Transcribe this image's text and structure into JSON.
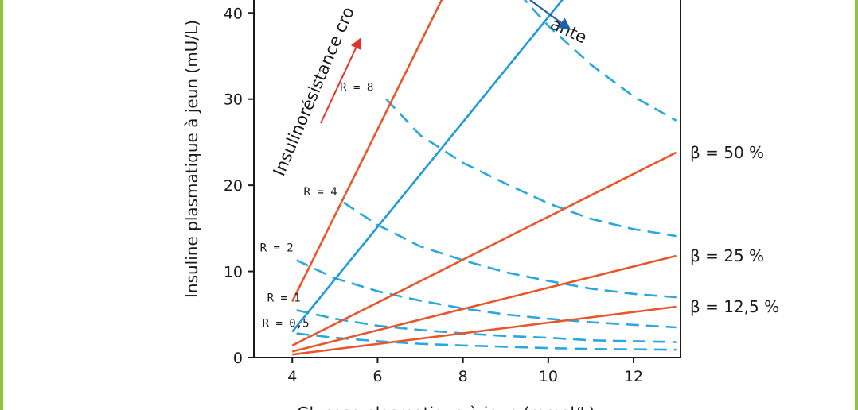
{
  "chart_data": {
    "type": "line",
    "xlabel": "Glucose plasmatique à jeun (mmol/L)",
    "ylabel": "Insuline plasmatique à jeun (mU/L)",
    "xlim": [
      3.1,
      13.1
    ],
    "ylim": [
      0,
      41.5
    ],
    "x_ticks": [
      4,
      6,
      8,
      10,
      12
    ],
    "y_ticks": [
      0,
      10,
      20,
      30,
      40
    ],
    "grid": false,
    "colors": {
      "beta": "#e8572b",
      "beta_100": "#1e9ad9",
      "iso_R": "#29a8e0",
      "arrow_red": "#e8302a",
      "arrow_blue": "#1f5fa8"
    },
    "beta_lines": [
      {
        "label": "",
        "x": [
          4,
          7.68
        ],
        "y": [
          6.5,
          43.3
        ]
      },
      {
        "label": "",
        "x": [
          4,
          10.54
        ],
        "y": [
          3,
          42.8
        ]
      },
      {
        "label": "β = 50 %",
        "x": [
          4,
          13
        ],
        "y": [
          1.4,
          23.8
        ]
      },
      {
        "label": "β = 25 %",
        "x": [
          4,
          13
        ],
        "y": [
          0.7,
          11.8
        ]
      },
      {
        "label": "β = 12,5 %",
        "x": [
          4,
          13
        ],
        "y": [
          0.35,
          5.9
        ]
      }
    ],
    "iso_R_curves": [
      {
        "label": "R = 8",
        "x": [
          6.2,
          7,
          8,
          9,
          10,
          11,
          12,
          13
        ],
        "y": [
          30,
          25.8,
          22.6,
          20.2,
          17.9,
          16.1,
          14.9,
          14.1
        ]
      },
      {
        "label": "R = 4",
        "x": [
          5.2,
          6,
          7,
          8,
          9,
          10,
          11,
          12,
          13
        ],
        "y": [
          18,
          15.4,
          12.9,
          11.3,
          9.9,
          8.9,
          8.0,
          7.4,
          7.0
        ]
      },
      {
        "label": "R = 2",
        "x": [
          4.1,
          5,
          6,
          7,
          8,
          9,
          10,
          11,
          12,
          13
        ],
        "y": [
          11.3,
          9.2,
          7.7,
          6.6,
          5.7,
          5.0,
          4.5,
          4.1,
          3.8,
          3.5
        ]
      },
      {
        "label": "R = 1",
        "x": [
          4.1,
          5,
          6,
          7,
          8,
          9,
          10,
          11,
          12,
          13
        ],
        "y": [
          5.5,
          4.5,
          3.7,
          3.2,
          2.8,
          2.5,
          2.3,
          2.0,
          1.9,
          1.8
        ]
      },
      {
        "label": "R = 0,5",
        "x": [
          4.1,
          5,
          6,
          7,
          8,
          9,
          10,
          11,
          12,
          13
        ],
        "y": [
          2.8,
          2.3,
          1.9,
          1.6,
          1.4,
          1.25,
          1.1,
          1.0,
          0.95,
          0.9
        ]
      },
      {
        "label": "",
        "x": [
          9,
          10,
          11,
          12,
          13
        ],
        "y": [
          44,
          38.5,
          34,
          30.3,
          27.5
        ]
      }
    ],
    "annotations": {
      "insulin_resistance": "Insulinorésistance cro",
      "secretion_partial": "ante"
    }
  }
}
